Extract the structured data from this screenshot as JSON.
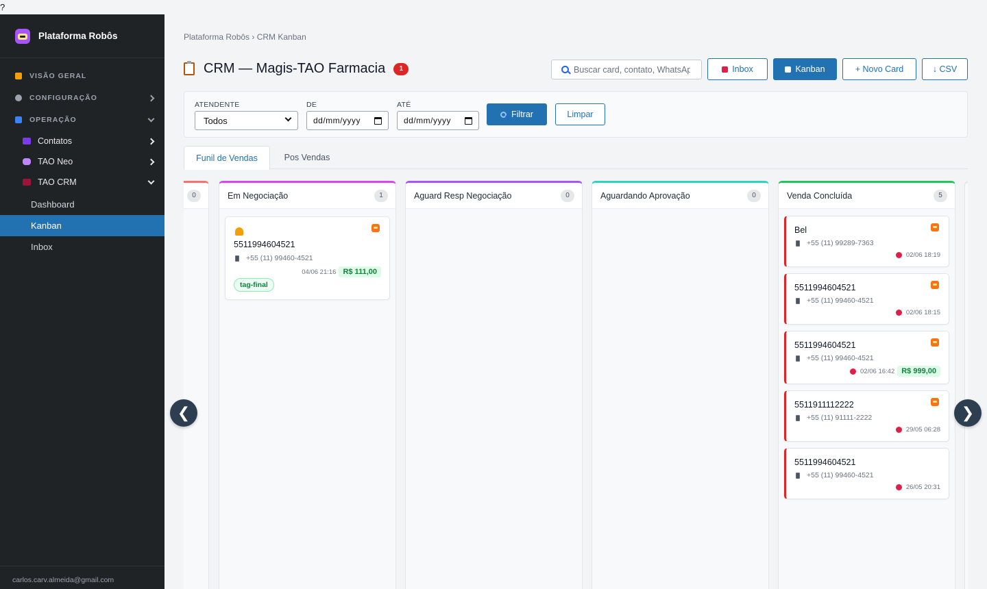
{
  "top_char": "?",
  "sidebar": {
    "brand": "Plataforma Robôs",
    "sections": [
      {
        "label": "VISÃO GERAL",
        "color": "#f59e0b"
      },
      {
        "label": "CONFIGURAÇÃO",
        "color": "#9ca3af"
      },
      {
        "label": "OPERAÇÃO",
        "color": "#3b82f6"
      }
    ],
    "subs": [
      {
        "label": "Contatos",
        "color": "#7c3aed"
      },
      {
        "label": "TAO Neo",
        "color": "#c084fc"
      },
      {
        "label": "TAO CRM",
        "color": "#9f1239"
      }
    ],
    "leaves": [
      "Dashboard",
      "Kanban",
      "Inbox"
    ],
    "footer_email": "carlos.carv.almeida@gmail.com"
  },
  "header": {
    "breadcrumb": "Plataforma Robôs › CRM Kanban",
    "title": "CRM — Magis-TAO Farmacia",
    "alert_count": "1",
    "search_placeholder": "Buscar card, contato, WhatsApp",
    "btn_inbox": "Inbox",
    "btn_kanban": "Kanban",
    "btn_new": "+ Novo Card",
    "btn_csv": "↓ CSV"
  },
  "filters": {
    "attendant_label": "ATENDENTE",
    "attendant_value": "Todos",
    "from_label": "DE",
    "to_label": "ATÉ",
    "date_placeholder": "dd/mm/yyyy",
    "filter_btn": "Filtrar",
    "clear_btn": "Limpar"
  },
  "tabs": [
    "Funil de Vendas",
    "Pos Vendas"
  ],
  "columns": [
    {
      "title": "",
      "count": "0",
      "color": "#f87171"
    },
    {
      "title": "Em Negociação",
      "count": "1",
      "color": "#d946ef"
    },
    {
      "title": "Aguard Resp Negociação",
      "count": "0",
      "color": "#a855f7"
    },
    {
      "title": "Aguardando Aprovação",
      "count": "0",
      "color": "#2dd4bf"
    },
    {
      "title": "Venda Concluída",
      "count": "5",
      "color": "#22c55e"
    }
  ],
  "cards_negociacao": [
    {
      "name": "5511994604521",
      "phone": "+55 (11) 99460-4521",
      "date": "04/06 21:16",
      "value": "R$ 111,00",
      "tag": "tag-final"
    }
  ],
  "cards_concluida": [
    {
      "name": "Bel",
      "phone": "+55 (11) 99289-7363",
      "date": "02/06 18:19",
      "value": ""
    },
    {
      "name": "5511994604521",
      "phone": "+55 (11) 99460-4521",
      "date": "02/06 18:15",
      "value": ""
    },
    {
      "name": "5511994604521",
      "phone": "+55 (11) 99460-4521",
      "date": "02/06 16:42",
      "value": "R$ 999,00"
    },
    {
      "name": "5511911112222",
      "phone": "+55 (11) 91111-2222",
      "date": "29/05 06:28",
      "value": ""
    },
    {
      "name": "5511994604521",
      "phone": "+55 (11) 99460-4521",
      "date": "26/05 20:31",
      "value": ""
    }
  ],
  "nav_arrows": {
    "left": "❮",
    "right": "❯"
  }
}
